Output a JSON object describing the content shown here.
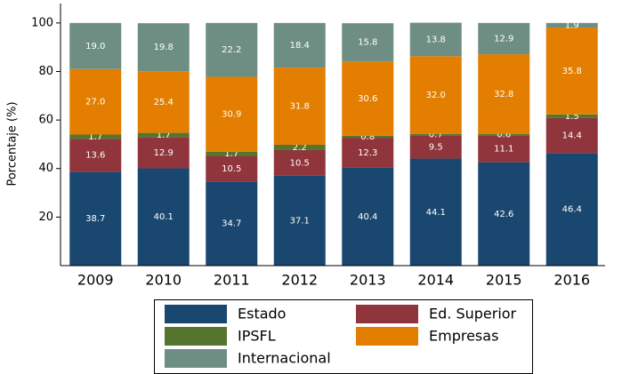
{
  "chart_data": {
    "type": "stacked_bar",
    "y_label": "Porcentaje (%)",
    "categories": [
      "2009",
      "2010",
      "2011",
      "2012",
      "2013",
      "2014",
      "2015",
      "2016"
    ],
    "series": [
      {
        "name": "Estado",
        "color": "#1a476f",
        "values": [
          38.7,
          40.1,
          34.7,
          37.1,
          40.4,
          44.1,
          42.6,
          46.4
        ],
        "value_labels": [
          "38.7",
          "40.1",
          "34.7",
          "37.1",
          "40.4",
          "44.1",
          "42.6",
          "46.4"
        ]
      },
      {
        "name": "Ed. Superior",
        "color": "#90353b",
        "values": [
          13.6,
          12.9,
          10.5,
          10.5,
          12.3,
          9.5,
          11.1,
          14.4
        ],
        "value_labels": [
          "13.6",
          "12.9",
          "10.5",
          "10.5",
          "12.3",
          "9.5",
          "11.1",
          "14.4"
        ]
      },
      {
        "name": "IPSFL",
        "color": "#55752f",
        "values": [
          1.7,
          1.7,
          1.7,
          2.2,
          0.8,
          0.7,
          0.6,
          1.5
        ],
        "value_labels": [
          "1.7",
          "1.7",
          "1.7",
          "2.2",
          "0.8",
          "0.7",
          "0.6",
          "1.5"
        ]
      },
      {
        "name": "Empresas",
        "color": "#e37e00",
        "values": [
          27,
          25.4,
          30.9,
          31.8,
          30.6,
          32,
          32.8,
          35.8
        ],
        "value_labels": [
          "27.0",
          "25.4",
          "30.9",
          "31.8",
          "30.6",
          "32.0",
          "32.8",
          "35.8"
        ]
      },
      {
        "name": "Internacional",
        "color": "#6e8e84",
        "values": [
          19,
          19.8,
          22.2,
          18.4,
          15.8,
          13.8,
          12.9,
          1.9
        ],
        "value_labels": [
          "19.0",
          "19.8",
          "22.2",
          "18.4",
          "15.8",
          "13.8",
          "12.9",
          "1.9"
        ]
      }
    ],
    "ylim": [
      0,
      108
    ],
    "yticks": [
      20,
      40,
      60,
      80,
      100
    ]
  }
}
